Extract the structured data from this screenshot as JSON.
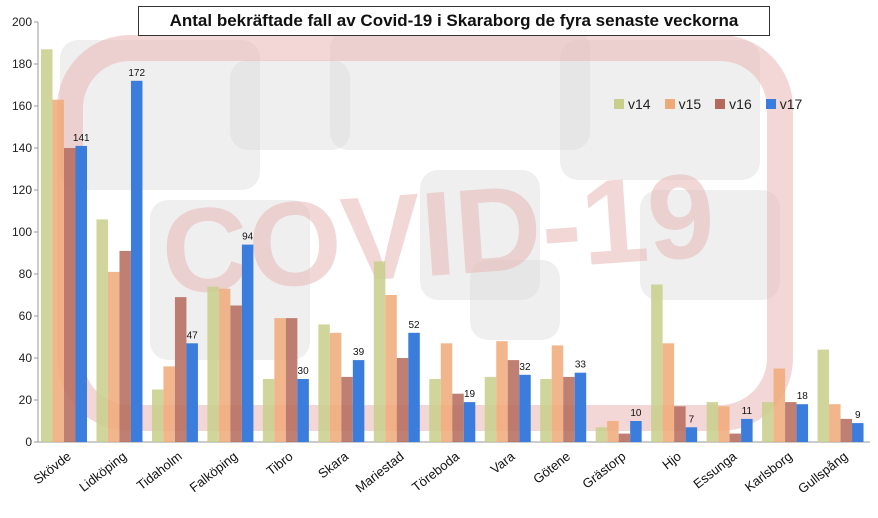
{
  "colors": {
    "v14": "#c8cf8a",
    "v15": "#f0a978",
    "v16": "#b46a5a",
    "v17": "#3b7ddd",
    "watermark": "#e9b7b7",
    "map": "#dcdcdc"
  },
  "watermark_text": "COVID-19",
  "chart_data": {
    "type": "bar",
    "title": "Antal bekräftade fall av Covid-19 i Skaraborg de fyra senaste veckorna",
    "categories": [
      "Skövde",
      "Lidköping",
      "Tidaholm",
      "Falköping",
      "Tibro",
      "Skara",
      "Mariestad",
      "Töreboda",
      "Vara",
      "Götene",
      "Grästorp",
      "Hjo",
      "Essunga",
      "Karlsborg",
      "Gullspång"
    ],
    "series": [
      {
        "name": "v14",
        "values": [
          187,
          106,
          25,
          74,
          30,
          56,
          86,
          30,
          31,
          30,
          7,
          75,
          19,
          19,
          44
        ]
      },
      {
        "name": "v15",
        "values": [
          163,
          81,
          36,
          73,
          59,
          52,
          70,
          47,
          48,
          46,
          10,
          47,
          17,
          35,
          18
        ]
      },
      {
        "name": "v16",
        "values": [
          140,
          91,
          69,
          65,
          59,
          31,
          40,
          23,
          39,
          31,
          4,
          17,
          4,
          19,
          11
        ]
      },
      {
        "name": "v17",
        "values": [
          141,
          172,
          47,
          94,
          30,
          39,
          52,
          19,
          32,
          33,
          10,
          7,
          11,
          18,
          9
        ]
      }
    ],
    "labeled_series": "v17",
    "ylim": [
      0,
      200
    ],
    "yticks": [
      0,
      20,
      40,
      60,
      80,
      100,
      120,
      140,
      160,
      180,
      200
    ],
    "grid": false,
    "legend_position": "top-right",
    "xlabel": "",
    "ylabel": ""
  }
}
